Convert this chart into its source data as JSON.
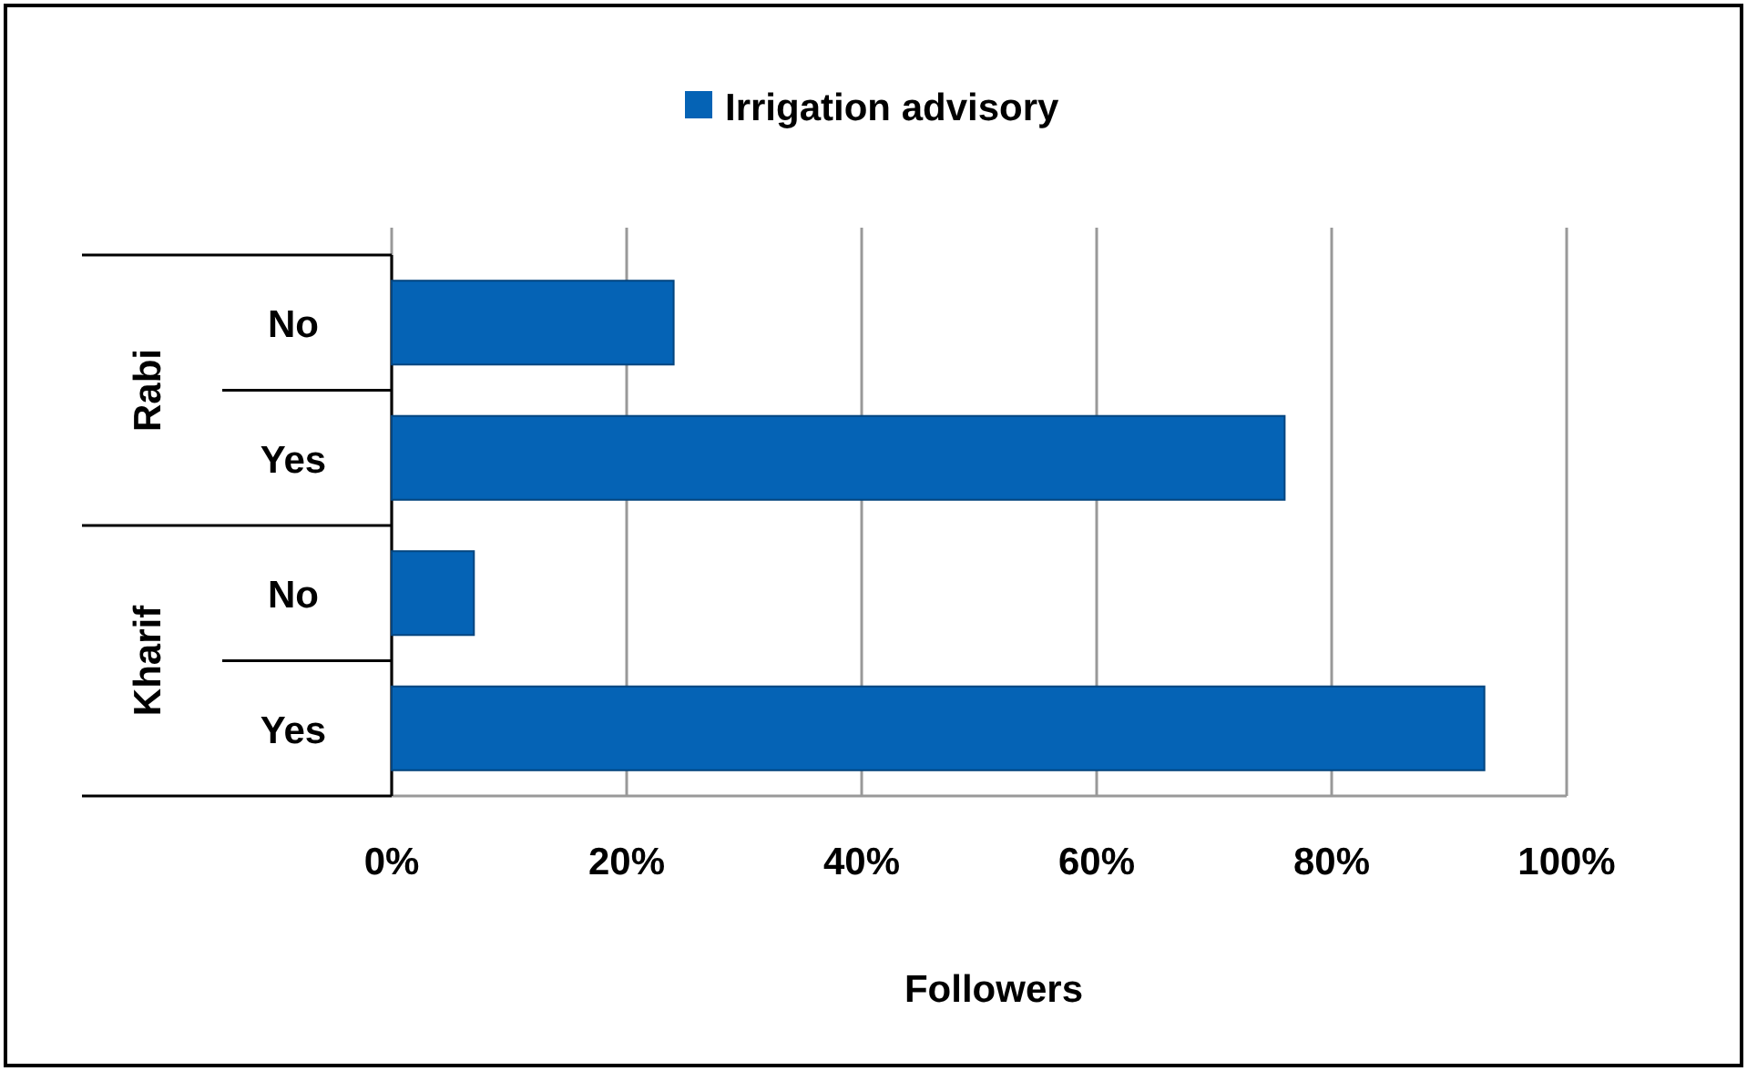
{
  "chart_data": {
    "type": "bar",
    "orientation": "horizontal",
    "xlabel": "Followers",
    "categories": [
      "No",
      "Yes",
      "No",
      "Yes"
    ],
    "series": [
      {
        "name": "Irrigation advisory",
        "color": "#0563b5",
        "values": [
          24,
          76,
          7,
          93
        ]
      }
    ],
    "xlim": [
      0,
      100
    ],
    "xticks": [
      {
        "value": 0,
        "label": "0%"
      },
      {
        "value": 20,
        "label": "20%"
      },
      {
        "value": 40,
        "label": "40%"
      },
      {
        "value": 60,
        "label": "60%"
      },
      {
        "value": 80,
        "label": "80%"
      },
      {
        "value": 100,
        "label": "100%"
      }
    ],
    "grid": "x",
    "legend": "top",
    "annotations": [
      "Rabi",
      "Kharif"
    ]
  }
}
